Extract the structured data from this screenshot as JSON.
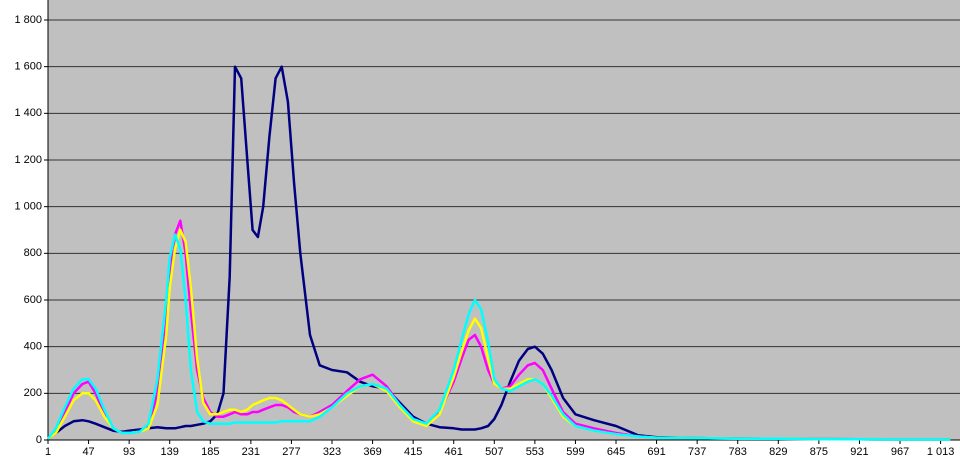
{
  "chart_data": {
    "type": "line",
    "x": [
      1,
      10,
      20,
      30,
      40,
      47,
      55,
      65,
      75,
      85,
      93,
      105,
      115,
      125,
      135,
      139,
      145,
      151,
      157,
      163,
      170,
      177,
      185,
      193,
      200,
      207,
      213,
      220,
      227,
      233,
      239,
      245,
      252,
      259,
      266,
      273,
      280,
      287,
      298,
      309,
      323,
      340,
      355,
      369,
      385,
      400,
      415,
      430,
      445,
      461,
      470,
      478,
      485,
      492,
      500,
      507,
      515,
      525,
      535,
      545,
      553,
      562,
      572,
      585,
      599,
      620,
      645,
      670,
      691,
      737,
      783,
      829,
      875,
      921,
      967,
      1013,
      1024
    ],
    "series": [
      {
        "color": "#000080",
        "values": [
          5,
          30,
          60,
          80,
          85,
          80,
          70,
          55,
          40,
          35,
          40,
          45,
          50,
          55,
          50,
          50,
          50,
          55,
          60,
          60,
          65,
          70,
          80,
          110,
          200,
          700,
          1600,
          1550,
          1200,
          900,
          870,
          1000,
          1300,
          1550,
          1600,
          1450,
          1100,
          800,
          450,
          320,
          300,
          290,
          250,
          230,
          220,
          160,
          100,
          70,
          55,
          50,
          45,
          45,
          45,
          50,
          60,
          90,
          150,
          250,
          340,
          390,
          400,
          370,
          300,
          180,
          110,
          85,
          60,
          20,
          12,
          8,
          6,
          5,
          4,
          3,
          2,
          2,
          2
        ]
      },
      {
        "color": "#ff00ff",
        "values": [
          5,
          40,
          120,
          200,
          240,
          250,
          200,
          110,
          50,
          30,
          30,
          35,
          60,
          200,
          500,
          700,
          880,
          940,
          800,
          550,
          300,
          180,
          120,
          100,
          100,
          110,
          120,
          110,
          110,
          120,
          120,
          130,
          140,
          150,
          150,
          140,
          120,
          110,
          100,
          120,
          150,
          210,
          260,
          280,
          230,
          150,
          90,
          70,
          120,
          250,
          350,
          430,
          450,
          400,
          300,
          240,
          220,
          230,
          280,
          320,
          330,
          300,
          220,
          120,
          70,
          50,
          30,
          15,
          10,
          8,
          6,
          5,
          4,
          3,
          2,
          2,
          2
        ]
      },
      {
        "color": "#ffff00",
        "values": [
          5,
          30,
          100,
          170,
          200,
          200,
          170,
          100,
          50,
          30,
          30,
          35,
          50,
          150,
          450,
          650,
          820,
          900,
          850,
          650,
          350,
          160,
          110,
          110,
          120,
          130,
          130,
          120,
          130,
          150,
          160,
          170,
          180,
          180,
          170,
          150,
          130,
          110,
          100,
          110,
          140,
          190,
          230,
          240,
          210,
          140,
          80,
          60,
          110,
          270,
          380,
          470,
          520,
          480,
          350,
          240,
          220,
          220,
          240,
          260,
          260,
          240,
          180,
          100,
          60,
          40,
          25,
          15,
          10,
          8,
          6,
          5,
          4,
          3,
          2,
          2,
          2
        ]
      },
      {
        "color": "#00ffff",
        "values": [
          5,
          50,
          140,
          220,
          260,
          260,
          220,
          130,
          50,
          30,
          30,
          35,
          70,
          260,
          600,
          780,
          880,
          820,
          600,
          300,
          120,
          80,
          70,
          70,
          70,
          70,
          75,
          75,
          75,
          75,
          75,
          75,
          75,
          75,
          80,
          80,
          80,
          80,
          80,
          100,
          140,
          200,
          230,
          240,
          220,
          150,
          90,
          70,
          130,
          300,
          430,
          540,
          600,
          560,
          420,
          260,
          220,
          210,
          230,
          250,
          260,
          240,
          190,
          110,
          60,
          40,
          25,
          15,
          10,
          8,
          6,
          5,
          4,
          3,
          2,
          2,
          2
        ]
      }
    ],
    "xlim": [
      1,
      1035
    ],
    "xticks": [
      1,
      47,
      93,
      139,
      185,
      231,
      277,
      323,
      369,
      415,
      461,
      507,
      553,
      599,
      645,
      691,
      737,
      783,
      829,
      875,
      921,
      967,
      {
        "value": 1013,
        "label": "1 013"
      }
    ],
    "ylim": [
      0,
      1800
    ],
    "yticks": [
      0,
      200,
      400,
      600,
      800,
      {
        "value": 1000,
        "label": "1 000"
      },
      {
        "value": 1200,
        "label": "1 200"
      },
      {
        "value": 1400,
        "label": "1 400"
      },
      {
        "value": 1600,
        "label": "1 600"
      },
      {
        "value": 1800,
        "label": "1 800"
      }
    ],
    "grid": true
  }
}
